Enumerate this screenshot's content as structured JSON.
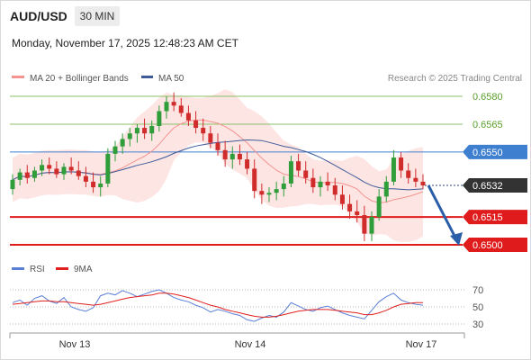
{
  "header": {
    "pair": "AUD/USD",
    "timeframe": "30 MIN"
  },
  "datetime": "Monday, November 17, 2025 12:48:23 AM CET",
  "legend": {
    "ma20": {
      "label": "MA 20 + Bollinger Bands",
      "color": "#f4938f"
    },
    "ma50": {
      "label": "MA 50",
      "color": "#3d5a99"
    },
    "credit": "Research © 2025 Trading Central"
  },
  "price_levels": [
    {
      "label": "0.6580",
      "value": 0.658,
      "kind": "target"
    },
    {
      "label": "0.6565",
      "value": 0.6565,
      "kind": "target"
    },
    {
      "label": "0.6550",
      "value": 0.655,
      "kind": "pivot"
    },
    {
      "label": "0.6532",
      "value": 0.6532,
      "kind": "current"
    },
    {
      "label": "0.6515",
      "value": 0.6515,
      "kind": "support"
    },
    {
      "label": "0.6500",
      "value": 0.65,
      "kind": "support"
    }
  ],
  "rsi_legend": {
    "rsi": "RSI",
    "ma9": "9MA",
    "rsi_color": "#5b7fd6",
    "ma9_color": "#e02020"
  },
  "rsi_levels": [
    "70",
    "50",
    "30"
  ],
  "x_labels": [
    "Nov 13",
    "Nov 14",
    "Nov 17"
  ],
  "colors": {
    "up": "#2f9e3a",
    "down": "#d12c2c",
    "band": "#fde1df",
    "target": "#8cc06a",
    "pivot": "#3f7fd0",
    "support": "#e01b1b",
    "current_box": "#333333",
    "arrow": "#2b5ea8"
  },
  "chart_data": {
    "type": "candlestick",
    "x_labels": [
      "Nov 13",
      "Nov 14",
      "Nov 17"
    ],
    "price_axis": [
      "0.6580",
      "0.6565",
      "0.6550",
      "0.6532",
      "0.6515",
      "0.6500"
    ],
    "last_price": 0.6532,
    "ohlc": [
      [
        0.653,
        0.6538,
        0.6527,
        0.6535
      ],
      [
        0.6535,
        0.6541,
        0.6532,
        0.6539
      ],
      [
        0.6539,
        0.6543,
        0.6533,
        0.6536
      ],
      [
        0.6536,
        0.6542,
        0.6534,
        0.654
      ],
      [
        0.654,
        0.6546,
        0.6537,
        0.6543
      ],
      [
        0.6543,
        0.6547,
        0.6538,
        0.6541
      ],
      [
        0.6541,
        0.6545,
        0.6536,
        0.6538
      ],
      [
        0.6538,
        0.6544,
        0.6535,
        0.6542
      ],
      [
        0.6542,
        0.6547,
        0.6538,
        0.654
      ],
      [
        0.654,
        0.6545,
        0.6535,
        0.6537
      ],
      [
        0.6537,
        0.6542,
        0.6531,
        0.6534
      ],
      [
        0.6534,
        0.6539,
        0.6528,
        0.6531
      ],
      [
        0.6531,
        0.6537,
        0.6526,
        0.6533
      ],
      [
        0.6533,
        0.6552,
        0.6531,
        0.6549
      ],
      [
        0.6549,
        0.6556,
        0.6545,
        0.6553
      ],
      [
        0.6553,
        0.656,
        0.6549,
        0.6557
      ],
      [
        0.6557,
        0.6563,
        0.6553,
        0.656
      ],
      [
        0.656,
        0.6565,
        0.6555,
        0.6563
      ],
      [
        0.6563,
        0.6568,
        0.6557,
        0.656
      ],
      [
        0.656,
        0.6567,
        0.6556,
        0.6564
      ],
      [
        0.6564,
        0.6575,
        0.6561,
        0.6572
      ],
      [
        0.6572,
        0.658,
        0.6568,
        0.6577
      ],
      [
        0.6577,
        0.6582,
        0.6572,
        0.6575
      ],
      [
        0.6575,
        0.6579,
        0.6569,
        0.6571
      ],
      [
        0.6571,
        0.6575,
        0.6564,
        0.6567
      ],
      [
        0.6567,
        0.6572,
        0.656,
        0.6563
      ],
      [
        0.6563,
        0.6568,
        0.6556,
        0.656
      ],
      [
        0.656,
        0.6564,
        0.6552,
        0.6555
      ],
      [
        0.6555,
        0.656,
        0.6548,
        0.6551
      ],
      [
        0.6551,
        0.6556,
        0.6542,
        0.6546
      ],
      [
        0.6546,
        0.6553,
        0.6541,
        0.6549
      ],
      [
        0.6549,
        0.6554,
        0.6543,
        0.6546
      ],
      [
        0.6546,
        0.655,
        0.6538,
        0.6541
      ],
      [
        0.6541,
        0.6546,
        0.6525,
        0.6529
      ],
      [
        0.6529,
        0.6533,
        0.6522,
        0.6527
      ],
      [
        0.6527,
        0.6531,
        0.6523,
        0.6528
      ],
      [
        0.6528,
        0.6534,
        0.6524,
        0.653
      ],
      [
        0.653,
        0.6537,
        0.6526,
        0.6533
      ],
      [
        0.6533,
        0.6548,
        0.6531,
        0.6545
      ],
      [
        0.6545,
        0.6549,
        0.6537,
        0.654
      ],
      [
        0.654,
        0.6545,
        0.6533,
        0.6536
      ],
      [
        0.6536,
        0.6541,
        0.6528,
        0.6531
      ],
      [
        0.6531,
        0.6537,
        0.6526,
        0.6534
      ],
      [
        0.6534,
        0.6539,
        0.6529,
        0.6532
      ],
      [
        0.6532,
        0.6536,
        0.6524,
        0.6527
      ],
      [
        0.6527,
        0.6532,
        0.6519,
        0.6522
      ],
      [
        0.6522,
        0.6527,
        0.6514,
        0.6518
      ],
      [
        0.6518,
        0.6524,
        0.6512,
        0.6516
      ],
      [
        0.6516,
        0.6521,
        0.6502,
        0.6506
      ],
      [
        0.6506,
        0.6518,
        0.6502,
        0.6515
      ],
      [
        0.6515,
        0.653,
        0.6513,
        0.6526
      ],
      [
        0.6526,
        0.6537,
        0.6523,
        0.6534
      ],
      [
        0.6534,
        0.6551,
        0.6532,
        0.6547
      ],
      [
        0.6547,
        0.655,
        0.6536,
        0.654
      ],
      [
        0.654,
        0.6544,
        0.6533,
        0.6536
      ],
      [
        0.6536,
        0.6541,
        0.6531,
        0.6534
      ],
      [
        0.6534,
        0.6538,
        0.653,
        0.6532
      ]
    ],
    "rsi": [
      55,
      58,
      52,
      60,
      63,
      57,
      54,
      61,
      50,
      47,
      45,
      49,
      63,
      66,
      64,
      69,
      66,
      62,
      65,
      68,
      70,
      66,
      61,
      58,
      56,
      52,
      49,
      44,
      47,
      45,
      42,
      40,
      35,
      33,
      37,
      40,
      38,
      44,
      55,
      51,
      47,
      45,
      49,
      51,
      47,
      43,
      40,
      38,
      36,
      46,
      56,
      62,
      66,
      58,
      55,
      53,
      52
    ],
    "rsi_ma9": [
      53,
      54,
      55,
      56,
      57,
      57,
      56,
      56,
      55,
      54,
      53,
      52,
      53,
      55,
      57,
      59,
      61,
      62,
      63,
      64,
      66,
      66,
      65,
      63,
      61,
      58,
      55,
      52,
      50,
      47,
      45,
      43,
      41,
      39,
      38,
      38,
      39,
      41,
      43,
      45,
      46,
      47,
      47,
      47,
      46,
      45,
      44,
      43,
      41,
      41,
      43,
      46,
      50,
      53,
      54,
      55,
      55
    ]
  }
}
